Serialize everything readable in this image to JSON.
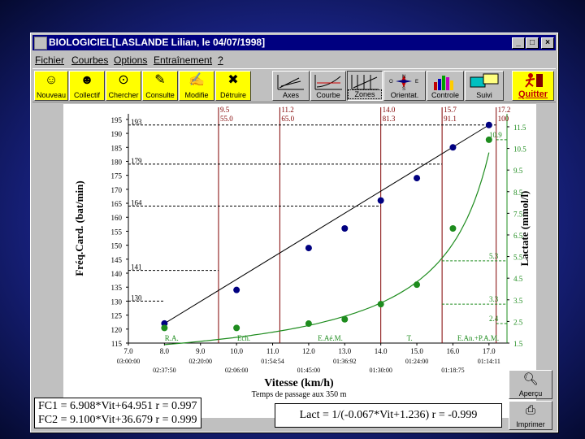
{
  "window": {
    "title": "BIOLOGICIEL[LASLANDE Lilian, le 04/07/1998]"
  },
  "menu": [
    "Fichier",
    "Courbes",
    "Options",
    "Entraînement",
    "?"
  ],
  "toolbar": {
    "left": [
      {
        "label": "Nouveau",
        "icon": "new-person-icon",
        "glyph": "☺"
      },
      {
        "label": "Collectif",
        "icon": "group-icon",
        "glyph": "☻"
      },
      {
        "label": "Chercher",
        "icon": "binoculars-icon",
        "glyph": "⊙"
      },
      {
        "label": "Consulte",
        "icon": "consult-icon",
        "glyph": "✎"
      },
      {
        "label": "Modifie",
        "icon": "modify-icon",
        "glyph": "✍"
      },
      {
        "label": "Détruire",
        "icon": "trash-icon",
        "glyph": "✖"
      }
    ],
    "right": [
      {
        "label": "Axes",
        "icon": "axes-icon",
        "glyph": "⊾"
      },
      {
        "label": "Courbe",
        "icon": "curve-icon",
        "glyph": "∿"
      },
      {
        "label": "Zones",
        "icon": "zones-icon",
        "glyph": "▦"
      },
      {
        "label": "Orientat.",
        "icon": "compass-icon",
        "glyph": "✦"
      },
      {
        "label": "Controle",
        "icon": "bar-chart-icon",
        "glyph": "▮"
      },
      {
        "label": "Suivi",
        "icon": "monitor-icon",
        "glyph": "▭"
      }
    ],
    "quit": "Quitter",
    "compass": {
      "n": "N",
      "o": "O",
      "e": "E",
      "s": "S"
    }
  },
  "side_buttons": {
    "preview": "Aperçu",
    "print": "Imprimer"
  },
  "stats": {
    "fc1": "FC1 = 6.908*Vit+64.951  r = 0.997",
    "fc2": "FC2 = 9.100*Vit+36.679  r = 0.999",
    "lact": "Lact = 1/(-0.067*Vit+1.236)  r = -0.999"
  },
  "colors": {
    "hr": "#000080",
    "lactate": "#1e8c1e",
    "zone": "#800000"
  },
  "chart_data": {
    "type": "line",
    "xlabel": "Vitesse (km/h)",
    "x_sublabel": "Temps de passage aux 350 m",
    "ylabel": "Fréq.Card. (bat/min)",
    "y2label": "Lactate (mmol/l)",
    "xlim": [
      7.0,
      17.5
    ],
    "ylim": [
      115,
      197
    ],
    "y2lim": [
      1.5,
      12.1
    ],
    "x_ticks": [
      "7.0",
      "8.0",
      "9.0",
      "10.0",
      "11.0",
      "12.0",
      "13.0",
      "14.0",
      "15.0",
      "16.0",
      "17.0"
    ],
    "x_times_upper": [
      "03:00:00",
      "02:20:00",
      "01:54:54",
      "01:36:92",
      "01:24:00",
      "01:14:11"
    ],
    "x_times_lower": [
      "02:37:50",
      "02:06:00",
      "01:45:00",
      "01:30:00",
      "01:18:75"
    ],
    "y_ticks": [
      "115",
      "120",
      "125",
      "130",
      "135",
      "140",
      "145",
      "150",
      "155",
      "160",
      "165",
      "170",
      "175",
      "180",
      "185",
      "190",
      "195"
    ],
    "y2_ticks": [
      "1.5",
      "2.5",
      "3.5",
      "4.5",
      "5.5",
      "6.5",
      "7.5",
      "8.5",
      "9.5",
      "10.5",
      "11.5"
    ],
    "series": [
      {
        "name": "FC",
        "x": [
          8,
          10,
          12,
          13,
          14,
          15,
          16,
          17
        ],
        "y": [
          122,
          134,
          149,
          156,
          166,
          174,
          185,
          193
        ]
      },
      {
        "name": "Lactate",
        "x": [
          8,
          10,
          12,
          13,
          14,
          15,
          16,
          17
        ],
        "y": [
          2.2,
          2.2,
          2.4,
          2.6,
          3.3,
          4.2,
          6.8,
          10.9
        ]
      }
    ],
    "zones": [
      {
        "speed": "9.5",
        "hr": "55.0",
        "x": 9.5
      },
      {
        "speed": "11.2",
        "hr": "65.0",
        "x": 11.2
      },
      {
        "speed": "14.0",
        "hr": "81.3",
        "x": 14.0
      },
      {
        "speed": "15.7",
        "hr": "91.1",
        "x": 15.7
      },
      {
        "speed": "17.2",
        "hr": "100",
        "x": 17.2
      }
    ],
    "zone_labels": [
      {
        "text": "R.A.",
        "x": 8.2
      },
      {
        "text": "Ech.",
        "x": 10.2
      },
      {
        "text": "E.Aé.M.",
        "x": 12.6
      },
      {
        "text": "T.",
        "x": 14.8
      },
      {
        "text": "E.An.+P.A.M.",
        "x": 16.7
      }
    ],
    "hr_markers": [
      {
        "text": "193",
        "y": 193
      },
      {
        "text": "179",
        "y": 179
      },
      {
        "text": "164",
        "y": 164
      },
      {
        "text": "141",
        "y": 141
      },
      {
        "text": "130",
        "y": 130
      }
    ],
    "lact_markers": [
      {
        "text": "10.9",
        "y": 10.9
      },
      {
        "text": "5.3",
        "y": 5.3
      },
      {
        "text": "3.3",
        "y": 3.3
      },
      {
        "text": "2.4",
        "y": 2.4
      }
    ]
  }
}
